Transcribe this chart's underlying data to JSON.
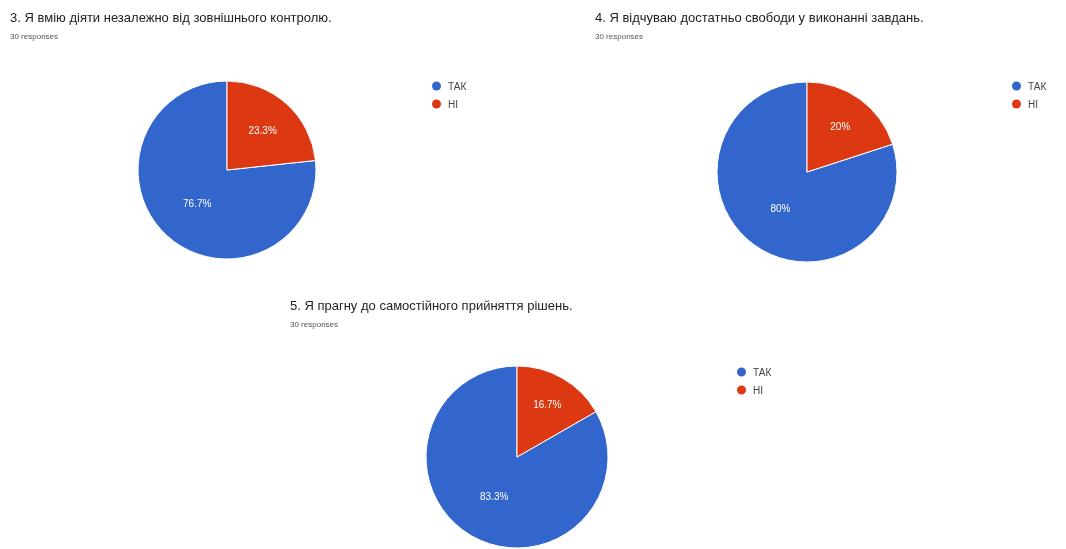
{
  "chart_data": [
    {
      "type": "pie",
      "title": "3. Я вмію діяти незалежно від зовнішнього контролю.",
      "subtitle": "30 responses",
      "categories": [
        "ТАК",
        "НІ"
      ],
      "values": [
        76.7,
        23.3
      ],
      "colors": [
        "#3366cc",
        "#dc3912"
      ],
      "value_labels": [
        "76.7%",
        "23.3%"
      ],
      "legend": "right"
    },
    {
      "type": "pie",
      "title": "4. Я відчуваю достатньо свободи у виконанні завдань.",
      "subtitle": "30 responses",
      "categories": [
        "ТАК",
        "НІ"
      ],
      "values": [
        80,
        20
      ],
      "colors": [
        "#3366cc",
        "#dc3912"
      ],
      "value_labels": [
        "80%",
        "20%"
      ],
      "legend": "right"
    },
    {
      "type": "pie",
      "title": "5. Я прагну до самостійного прийняття рішень.",
      "subtitle": "30 responses",
      "categories": [
        "ТАК",
        "НІ"
      ],
      "values": [
        83.3,
        16.7
      ],
      "colors": [
        "#3366cc",
        "#dc3912"
      ],
      "value_labels": [
        "83.3%",
        "16.7%"
      ],
      "legend": "right"
    }
  ]
}
